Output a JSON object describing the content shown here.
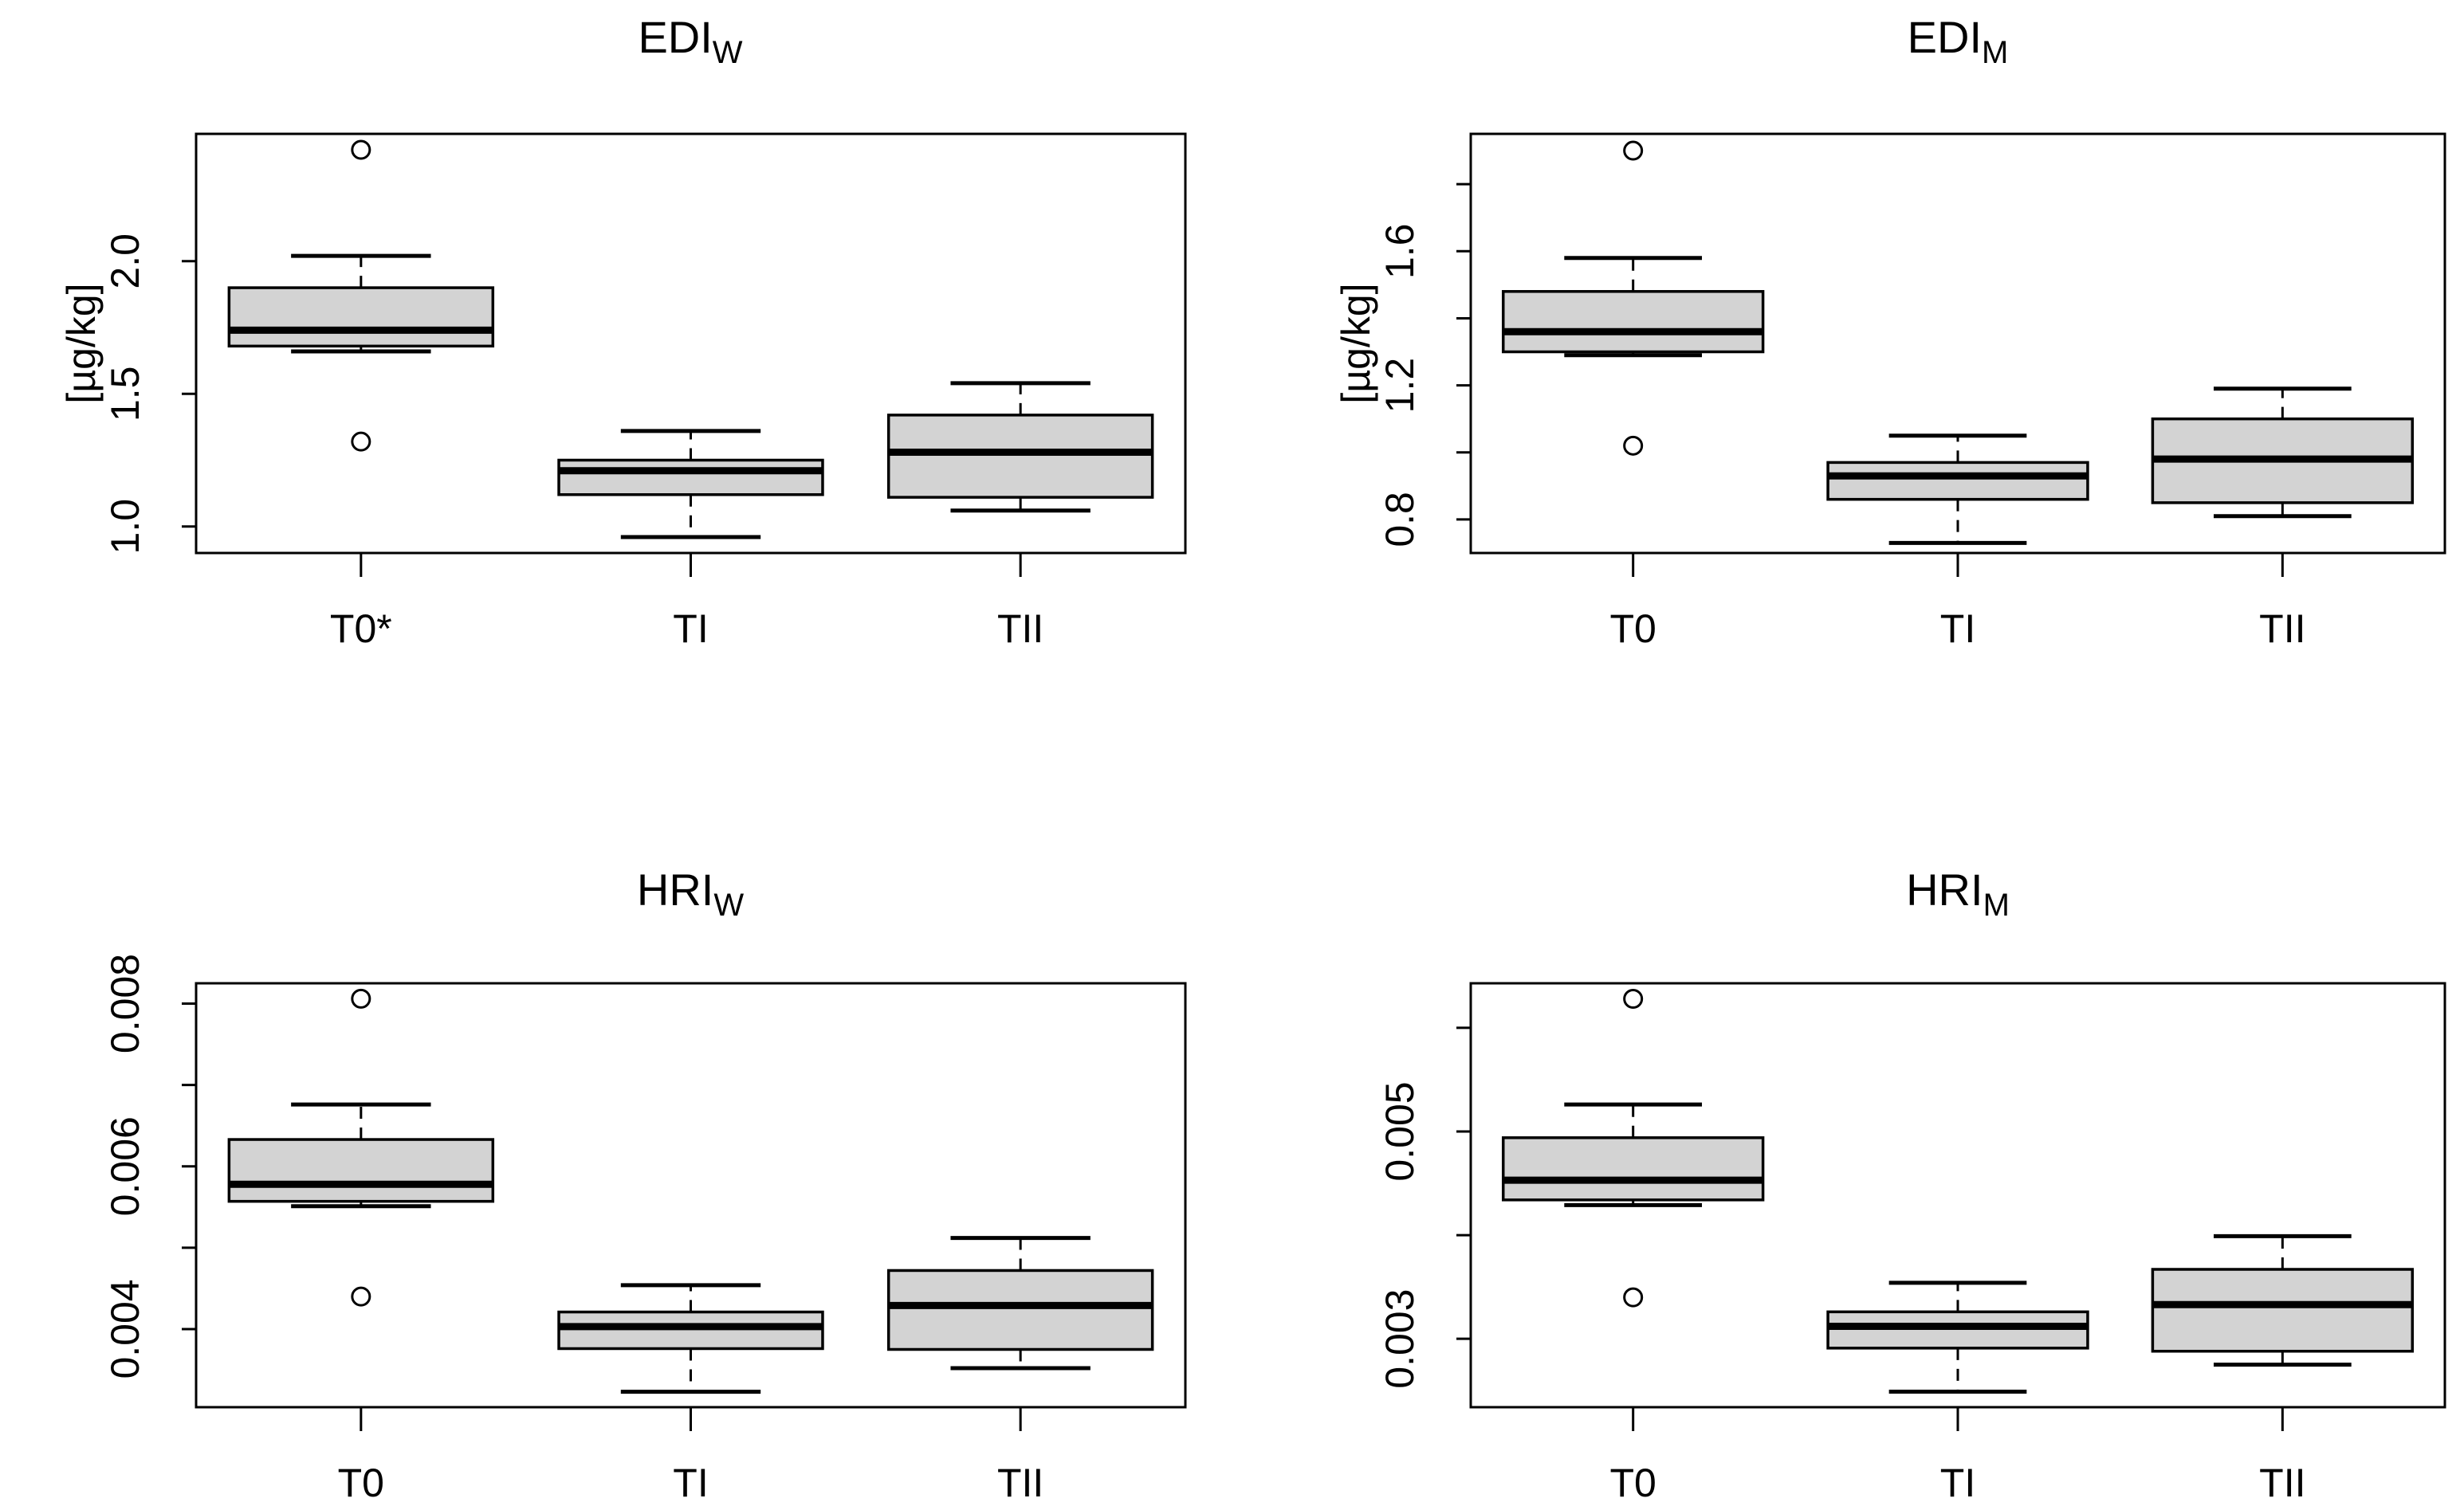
{
  "figure": {
    "background": "#ffffff",
    "box_fill": "#d3d3d3",
    "stroke_color": "#000000"
  },
  "chart_data": [
    {
      "id": "edi-w",
      "type": "box",
      "title": "EDI",
      "title_subscript": "W",
      "ylabel": "[µg/kg]",
      "ylim": [
        0.9,
        2.48
      ],
      "grid": false,
      "legend": false,
      "yticks": [
        {
          "value": 1.0,
          "label": "1.0"
        },
        {
          "value": 1.5,
          "label": "1.5"
        },
        {
          "value": 2.0,
          "label": "2.0"
        }
      ],
      "groups": [
        {
          "label": "T0*",
          "whisker_low": 1.66,
          "q1": 1.68,
          "median": 1.74,
          "q3": 1.9,
          "whisker_high": 2.02,
          "outliers": [
            2.42,
            1.32
          ]
        },
        {
          "label": "TI",
          "whisker_low": 0.96,
          "q1": 1.12,
          "median": 1.21,
          "q3": 1.25,
          "whisker_high": 1.36,
          "outliers": []
        },
        {
          "label": "TII",
          "whisker_low": 1.06,
          "q1": 1.11,
          "median": 1.28,
          "q3": 1.42,
          "whisker_high": 1.54,
          "outliers": []
        }
      ]
    },
    {
      "id": "edi-m",
      "type": "box",
      "title": "EDI",
      "title_subscript": "M",
      "ylabel": "[µg/kg]",
      "ylim": [
        0.7,
        1.95
      ],
      "grid": false,
      "legend": false,
      "yticks": [
        {
          "value": 0.8,
          "label": "0.8"
        },
        {
          "value": 1.0,
          "label": ""
        },
        {
          "value": 1.2,
          "label": "1.2"
        },
        {
          "value": 1.4,
          "label": ""
        },
        {
          "value": 1.6,
          "label": "1.6"
        },
        {
          "value": 1.8,
          "label": ""
        }
      ],
      "groups": [
        {
          "label": "T0",
          "whisker_low": 1.29,
          "q1": 1.3,
          "median": 1.36,
          "q3": 1.48,
          "whisker_high": 1.58,
          "outliers": [
            1.9,
            1.02
          ]
        },
        {
          "label": "TI",
          "whisker_low": 0.73,
          "q1": 0.86,
          "median": 0.93,
          "q3": 0.97,
          "whisker_high": 1.05,
          "outliers": []
        },
        {
          "label": "TII",
          "whisker_low": 0.81,
          "q1": 0.85,
          "median": 0.98,
          "q3": 1.1,
          "whisker_high": 1.19,
          "outliers": []
        }
      ]
    },
    {
      "id": "hri-w",
      "type": "box",
      "title": "HRI",
      "title_subscript": "W",
      "ylabel": null,
      "ylim": [
        0.00304,
        0.00825
      ],
      "grid": false,
      "legend": false,
      "yticks": [
        {
          "value": 0.004,
          "label": "0.004"
        },
        {
          "value": 0.005,
          "label": ""
        },
        {
          "value": 0.006,
          "label": "0.006"
        },
        {
          "value": 0.007,
          "label": ""
        },
        {
          "value": 0.008,
          "label": "0.008"
        }
      ],
      "groups": [
        {
          "label": "T0",
          "whisker_low": 0.00551,
          "q1": 0.00557,
          "median": 0.00578,
          "q3": 0.00633,
          "whisker_high": 0.00676,
          "outliers": [
            0.00806,
            0.0044
          ]
        },
        {
          "label": "TI",
          "whisker_low": 0.00323,
          "q1": 0.00376,
          "median": 0.00403,
          "q3": 0.00421,
          "whisker_high": 0.00454,
          "outliers": []
        },
        {
          "label": "TII",
          "whisker_low": 0.00352,
          "q1": 0.00375,
          "median": 0.00429,
          "q3": 0.00472,
          "whisker_high": 0.00512,
          "outliers": []
        }
      ]
    },
    {
      "id": "hri-m",
      "type": "box",
      "title": "HRI",
      "title_subscript": "M",
      "ylabel": null,
      "ylim": [
        0.00234,
        0.00643
      ],
      "grid": false,
      "legend": false,
      "yticks": [
        {
          "value": 0.003,
          "label": "0.003"
        },
        {
          "value": 0.004,
          "label": ""
        },
        {
          "value": 0.005,
          "label": "0.005"
        },
        {
          "value": 0.006,
          "label": ""
        }
      ],
      "groups": [
        {
          "label": "T0",
          "whisker_low": 0.00429,
          "q1": 0.00434,
          "median": 0.00453,
          "q3": 0.00494,
          "whisker_high": 0.00526,
          "outliers": [
            0.00628,
            0.0034
          ]
        },
        {
          "label": "TI",
          "whisker_low": 0.00249,
          "q1": 0.00291,
          "median": 0.00312,
          "q3": 0.00326,
          "whisker_high": 0.00354,
          "outliers": []
        },
        {
          "label": "TII",
          "whisker_low": 0.00275,
          "q1": 0.00288,
          "median": 0.00333,
          "q3": 0.00367,
          "whisker_high": 0.00399,
          "outliers": []
        }
      ]
    }
  ]
}
